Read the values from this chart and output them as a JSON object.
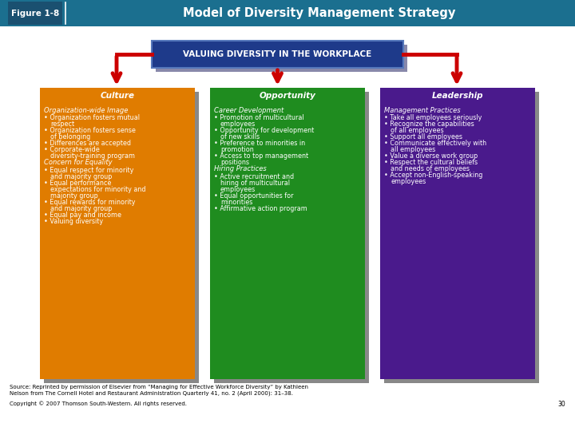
{
  "title_box_label": "Figure 1-8",
  "title_text": "Model of Diversity Management Strategy",
  "title_bg": "#1b6f8f",
  "title_label_bg": "#1a5070",
  "top_box_text": "VALUING DIVERSITY IN THE WORKPLACE",
  "top_box_bg": "#1e3a8a",
  "top_box_shadow": "#8888aa",
  "arrow_color": "#cc0000",
  "col1_header": "Culture",
  "col1_bg": "#e07c00",
  "col1_shadow": "#888888",
  "col1_content_italic": [
    "Organization-wide Image",
    "Concern for Equality"
  ],
  "col1_items": [
    {
      "text": "Organization-wide Image",
      "type": "section"
    },
    {
      "text": "• Organization fosters mutual respect",
      "type": "bullet"
    },
    {
      "text": "• Organization fosters sense of belonging",
      "type": "bullet"
    },
    {
      "text": "• Differences are accepted",
      "type": "bullet"
    },
    {
      "text": "• Corporate-wide diversity-training program",
      "type": "bullet"
    },
    {
      "text": "Concern for Equality",
      "type": "section"
    },
    {
      "text": "• Equal respect for minority and majority group",
      "type": "bullet"
    },
    {
      "text": "• Equal performance expectations for minority and majority group",
      "type": "bullet"
    },
    {
      "text": "• Equal rewards for minority and majority group",
      "type": "bullet"
    },
    {
      "text": "• Equal pay and income",
      "type": "bullet"
    },
    {
      "text": "• Valuing diversity",
      "type": "bullet"
    }
  ],
  "col2_header": "Opportunity",
  "col2_bg": "#1f8c1f",
  "col2_shadow": "#888888",
  "col2_items": [
    {
      "text": "Career Development",
      "type": "section"
    },
    {
      "text": "• Promotion of multicultural employees",
      "type": "bullet"
    },
    {
      "text": "• Opportunity for development of new skills",
      "type": "bullet"
    },
    {
      "text": "• Preference to minorities in promotion",
      "type": "bullet"
    },
    {
      "text": "• Access to top management positions",
      "type": "bullet"
    },
    {
      "text": "Hiring Practices",
      "type": "section"
    },
    {
      "text": "• Active recruitment and hiring of multicultural employees",
      "type": "bullet"
    },
    {
      "text": "• Equal opportunities for minorities",
      "type": "bullet"
    },
    {
      "text": "• Affirmative action program",
      "type": "bullet"
    }
  ],
  "col3_header": "Leadership",
  "col3_bg": "#4a1a8c",
  "col3_shadow": "#888888",
  "col3_items": [
    {
      "text": "Management Practices",
      "type": "section"
    },
    {
      "text": "• Take all employees seriously",
      "type": "bullet"
    },
    {
      "text": "• Recognize the capabilities of all employees",
      "type": "bullet"
    },
    {
      "text": "• Support all employees",
      "type": "bullet"
    },
    {
      "text": "• Communicate effectively with all employees",
      "type": "bullet"
    },
    {
      "text": "• Value a diverse work group",
      "type": "bullet"
    },
    {
      "text": "• Respect the cultural beliefs and needs of employees",
      "type": "bullet"
    },
    {
      "text": "• Accept non-English-speaking employees",
      "type": "bullet"
    }
  ],
  "source_line1": "Source: Reprinted by permission of Elsevier from “Managing for Effective Workforce Diversity” by Kathleen",
  "source_line2": "Nelson from The Cornell Hotel and Restaurant Administration Quarterly 41, no. 2 (April 2000): 31–38.",
  "copyright_text": "Copyright © 2007 Thomson South-Western. All rights reserved.",
  "page_num": "30",
  "bg_color": "#ffffff"
}
